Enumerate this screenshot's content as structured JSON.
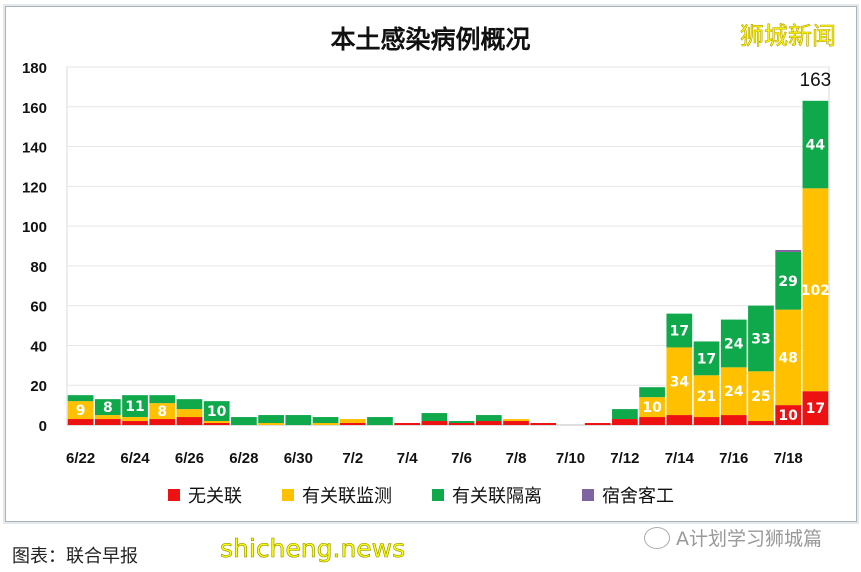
{
  "watermark_top": "狮城新闻",
  "caption": "图表：联合早报",
  "watermark_bottom": "shicheng.news",
  "wechat_account": "A计划学习狮城篇",
  "icons": {
    "wechat": "wechat-logo-icon"
  },
  "chart_data": {
    "type": "bar",
    "stacked": true,
    "title": "本土感染病例概况",
    "xlabel": "",
    "ylabel": "",
    "ylim": [
      0,
      180
    ],
    "yticks": [
      0,
      20,
      40,
      60,
      80,
      100,
      120,
      140,
      160,
      180
    ],
    "grid": true,
    "legend_position": "bottom",
    "categories": [
      "6/22",
      "6/23",
      "6/24",
      "6/25",
      "6/26",
      "6/27",
      "6/28",
      "6/29",
      "6/30",
      "7/1",
      "7/2",
      "7/3",
      "7/4",
      "7/5",
      "7/6",
      "7/7",
      "7/8",
      "7/9",
      "7/10",
      "7/11",
      "7/12",
      "7/13",
      "7/14",
      "7/15",
      "7/16",
      "7/17",
      "7/18",
      "7/19"
    ],
    "tick_labels": [
      "6/22",
      "6/24",
      "6/26",
      "6/28",
      "6/30",
      "7/2",
      "7/4",
      "7/6",
      "7/8",
      "7/10",
      "7/12",
      "7/14",
      "7/16",
      "7/18"
    ],
    "series": [
      {
        "name": "无关联",
        "color": "#ee1111",
        "values": [
          3,
          3,
          2,
          3,
          4,
          1,
          0,
          0,
          0,
          0,
          1,
          0,
          1,
          2,
          1,
          2,
          2,
          1,
          0,
          1,
          3,
          4,
          5,
          4,
          5,
          2,
          10,
          17
        ]
      },
      {
        "name": "有关联监测",
        "color": "#ffc000",
        "values": [
          9,
          2,
          2,
          8,
          4,
          1,
          0,
          1,
          0,
          1,
          2,
          0,
          0,
          0,
          0,
          0,
          1,
          0,
          0,
          0,
          0,
          10,
          34,
          21,
          24,
          25,
          48,
          102
        ]
      },
      {
        "name": "有关联隔离",
        "color": "#0fa84a",
        "values": [
          3,
          8,
          11,
          4,
          5,
          10,
          4,
          4,
          5,
          3,
          0,
          4,
          0,
          4,
          1,
          3,
          0,
          0,
          0,
          0,
          5,
          5,
          17,
          17,
          24,
          33,
          29,
          44
        ]
      },
      {
        "name": "宿舍客工",
        "color": "#8064a2",
        "values": [
          0,
          0,
          0,
          0,
          0,
          0,
          0,
          0,
          0,
          0,
          0,
          0,
          0,
          0,
          0,
          0,
          0,
          0,
          0,
          0,
          0,
          0,
          0,
          0,
          0,
          0,
          1,
          0
        ]
      }
    ],
    "annotations": [
      {
        "category": "7/19",
        "text": "163"
      }
    ]
  }
}
